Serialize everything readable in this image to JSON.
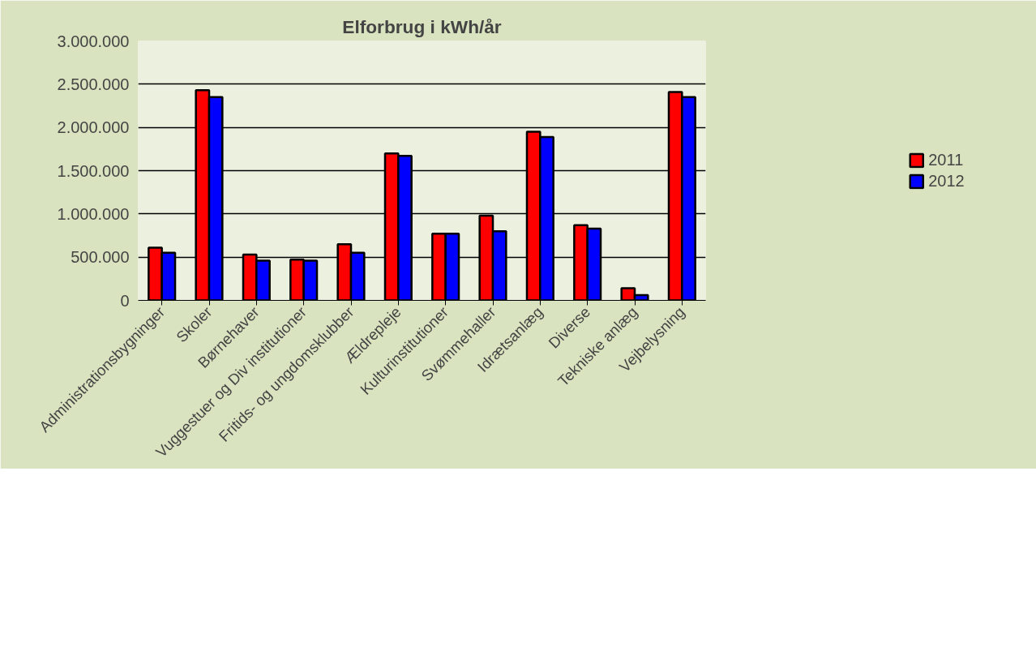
{
  "chart_data": {
    "type": "bar",
    "title": "Elforbrug i kWh/år",
    "categories": [
      "Administrationsbygninger",
      "Skoler",
      "Børnehaver",
      "Vuggestuer og Div institutioner",
      "Fritids- og ungdomsklubber",
      "Ældrepleje",
      "Kulturinstitutioner",
      "Svømmehaller",
      "Idrætsanlæg",
      "Diverse",
      "Tekniske anlæg",
      "Vejbelysning"
    ],
    "series": [
      {
        "name": "2011",
        "color": "#ff0000",
        "values": [
          610000,
          2430000,
          530000,
          470000,
          650000,
          1700000,
          770000,
          980000,
          1950000,
          870000,
          140000,
          2410000
        ]
      },
      {
        "name": "2012",
        "color": "#0000ff",
        "values": [
          550000,
          2350000,
          460000,
          460000,
          550000,
          1670000,
          770000,
          800000,
          1890000,
          830000,
          60000,
          2350000
        ]
      }
    ],
    "ylim": [
      0,
      3000000
    ],
    "yticks": [
      {
        "value": 0,
        "label": "0"
      },
      {
        "value": 500000,
        "label": "500.000"
      },
      {
        "value": 1000000,
        "label": "1.000.000"
      },
      {
        "value": 1500000,
        "label": "1.500.000"
      },
      {
        "value": 2000000,
        "label": "2.000.000"
      },
      {
        "value": 2500000,
        "label": "2.500.000"
      },
      {
        "value": 3000000,
        "label": "3.000.000"
      }
    ],
    "grid": "y",
    "legend": "right"
  }
}
